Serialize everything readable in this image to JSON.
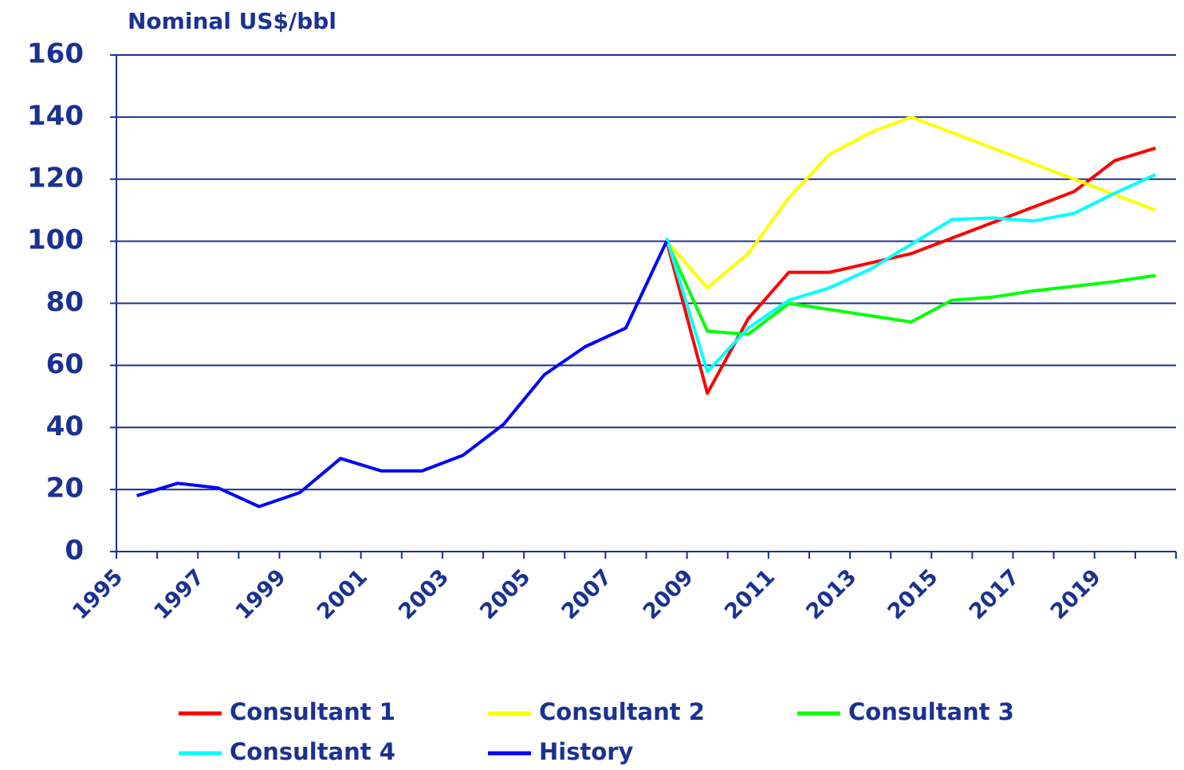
{
  "chart_data": {
    "type": "line",
    "y_label": "Nominal US$/bbl",
    "categories": [
      "1995",
      null,
      "1997",
      null,
      "1999",
      null,
      "2001",
      null,
      "2003",
      null,
      "2005",
      null,
      "2007",
      null,
      "2009",
      null,
      "2011",
      null,
      "2013",
      null,
      "2015",
      null,
      "2017",
      null,
      "2019",
      null
    ],
    "series": [
      {
        "name": "Consultant 1",
        "color": "#ff0000",
        "values": [
          null,
          null,
          null,
          null,
          null,
          null,
          null,
          null,
          null,
          null,
          null,
          null,
          null,
          100,
          51,
          75,
          90,
          90,
          93,
          96,
          101,
          106,
          111,
          116,
          126,
          130
        ]
      },
      {
        "name": "Consultant 2",
        "color": "#ffff00",
        "values": [
          null,
          null,
          null,
          null,
          null,
          null,
          null,
          null,
          null,
          null,
          null,
          null,
          null,
          100,
          85,
          96,
          114,
          128,
          135,
          140,
          135,
          130,
          125,
          120,
          115,
          110
        ]
      },
      {
        "name": "Consultant 3",
        "color": "#00ff00",
        "values": [
          null,
          null,
          null,
          null,
          null,
          null,
          null,
          null,
          null,
          null,
          null,
          null,
          null,
          100,
          71,
          70,
          80,
          78,
          76,
          74,
          81,
          82,
          84,
          85.5,
          87,
          89
        ]
      },
      {
        "name": "Consultant 4",
        "color": "#00ffff",
        "values": [
          null,
          null,
          null,
          null,
          null,
          null,
          null,
          null,
          null,
          null,
          null,
          null,
          null,
          101,
          58,
          72,
          81,
          85,
          91,
          99,
          107,
          107.5,
          106.5,
          109,
          115.5,
          121.5
        ]
      },
      {
        "name": "History",
        "color": "#0000ff",
        "values": [
          18,
          22,
          20.5,
          14.5,
          19,
          30,
          26,
          26,
          31,
          41,
          57,
          66,
          72,
          100,
          null,
          null,
          null,
          null,
          null,
          null,
          null,
          null,
          null,
          null,
          null,
          null
        ]
      }
    ],
    "ylim": [
      0,
      160
    ],
    "yticks": [
      0,
      20,
      40,
      60,
      80,
      100,
      120,
      140,
      160
    ],
    "grid": true,
    "legend": "bottom"
  }
}
